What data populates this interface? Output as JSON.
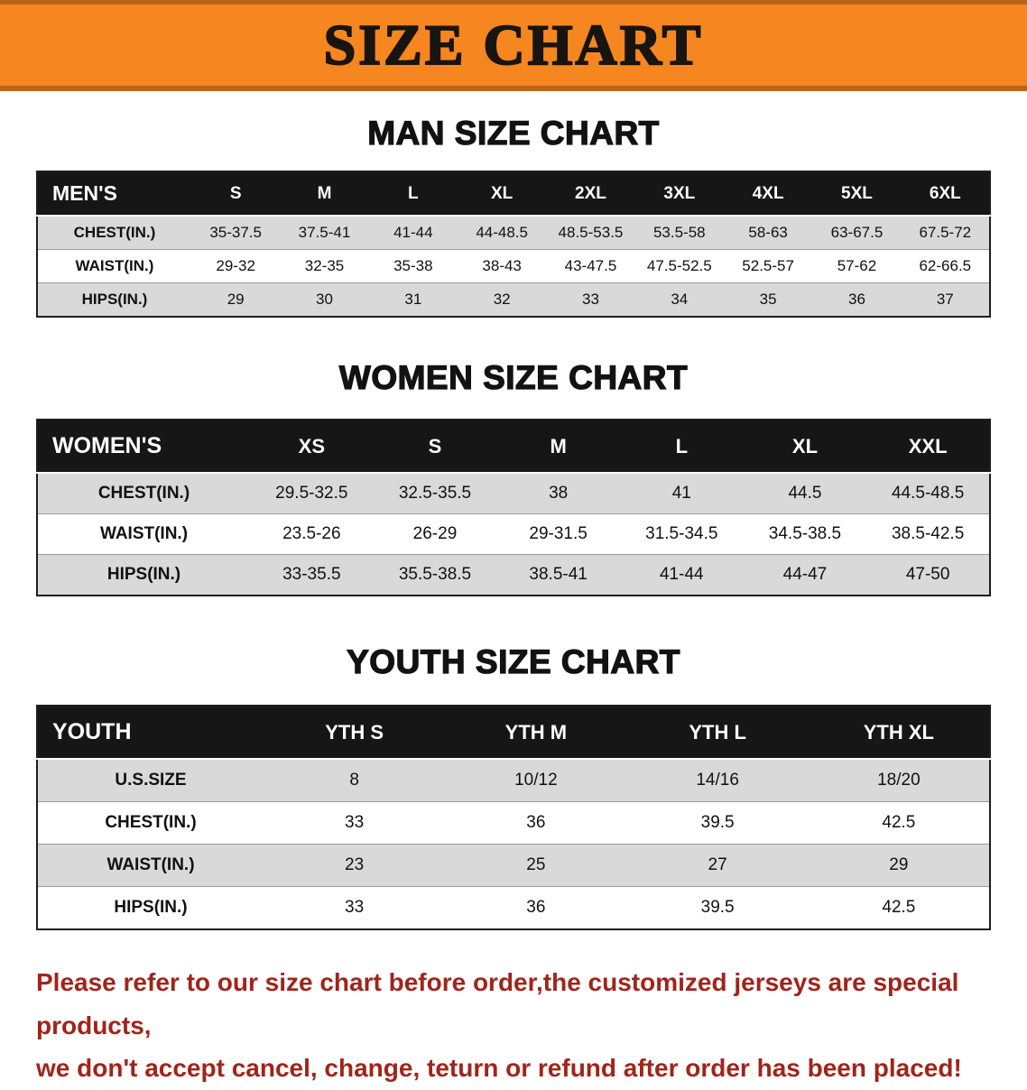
{
  "banner": {
    "title": "SIZE CHART"
  },
  "colors": {
    "banner_orange": "#f6861f",
    "banner_edge": "#b9641c",
    "header_black": "#161616",
    "row_shade": "#d9d9d9",
    "note_red": "#a1241b"
  },
  "men": {
    "heading": "MAN SIZE CHART",
    "label": "MEN'S",
    "sizes": [
      "S",
      "M",
      "L",
      "XL",
      "2XL",
      "3XL",
      "4XL",
      "5XL",
      "6XL"
    ],
    "rows": [
      {
        "label": "CHEST(IN.)",
        "values": [
          "35-37.5",
          "37.5-41",
          "41-44",
          "44-48.5",
          "48.5-53.5",
          "53.5-58",
          "58-63",
          "63-67.5",
          "67.5-72"
        ]
      },
      {
        "label": "WAIST(IN.)",
        "values": [
          "29-32",
          "32-35",
          "35-38",
          "38-43",
          "43-47.5",
          "47.5-52.5",
          "52.5-57",
          "57-62",
          "62-66.5"
        ]
      },
      {
        "label": "HIPS(IN.)",
        "values": [
          "29",
          "30",
          "31",
          "32",
          "33",
          "34",
          "35",
          "36",
          "37"
        ]
      }
    ]
  },
  "women": {
    "heading": "WOMEN SIZE CHART",
    "label": "WOMEN'S",
    "sizes": [
      "XS",
      "S",
      "M",
      "L",
      "XL",
      "XXL"
    ],
    "rows": [
      {
        "label": "CHEST(IN.)",
        "values": [
          "29.5-32.5",
          "32.5-35.5",
          "38",
          "41",
          "44.5",
          "44.5-48.5"
        ]
      },
      {
        "label": "WAIST(IN.)",
        "values": [
          "23.5-26",
          "26-29",
          "29-31.5",
          "31.5-34.5",
          "34.5-38.5",
          "38.5-42.5"
        ]
      },
      {
        "label": "HIPS(IN.)",
        "values": [
          "33-35.5",
          "35.5-38.5",
          "38.5-41",
          "41-44",
          "44-47",
          "47-50"
        ]
      }
    ]
  },
  "youth": {
    "heading": "YOUTH SIZE CHART",
    "label": "YOUTH",
    "sizes": [
      "YTH S",
      "YTH M",
      "YTH L",
      "YTH XL"
    ],
    "rows": [
      {
        "label": "U.S.SIZE",
        "values": [
          "8",
          "10/12",
          "14/16",
          "18/20"
        ]
      },
      {
        "label": "CHEST(IN.)",
        "values": [
          "33",
          "36",
          "39.5",
          "42.5"
        ]
      },
      {
        "label": "WAIST(IN.)",
        "values": [
          "23",
          "25",
          "27",
          "29"
        ]
      },
      {
        "label": "HIPS(IN.)",
        "values": [
          "33",
          "36",
          "39.5",
          "42.5"
        ]
      }
    ]
  },
  "footer": {
    "line1": "Please refer to our size chart before order,the customized jerseys are special products,",
    "line2": "we don't accept cancel, change, teturn or refund after order has been placed!"
  }
}
